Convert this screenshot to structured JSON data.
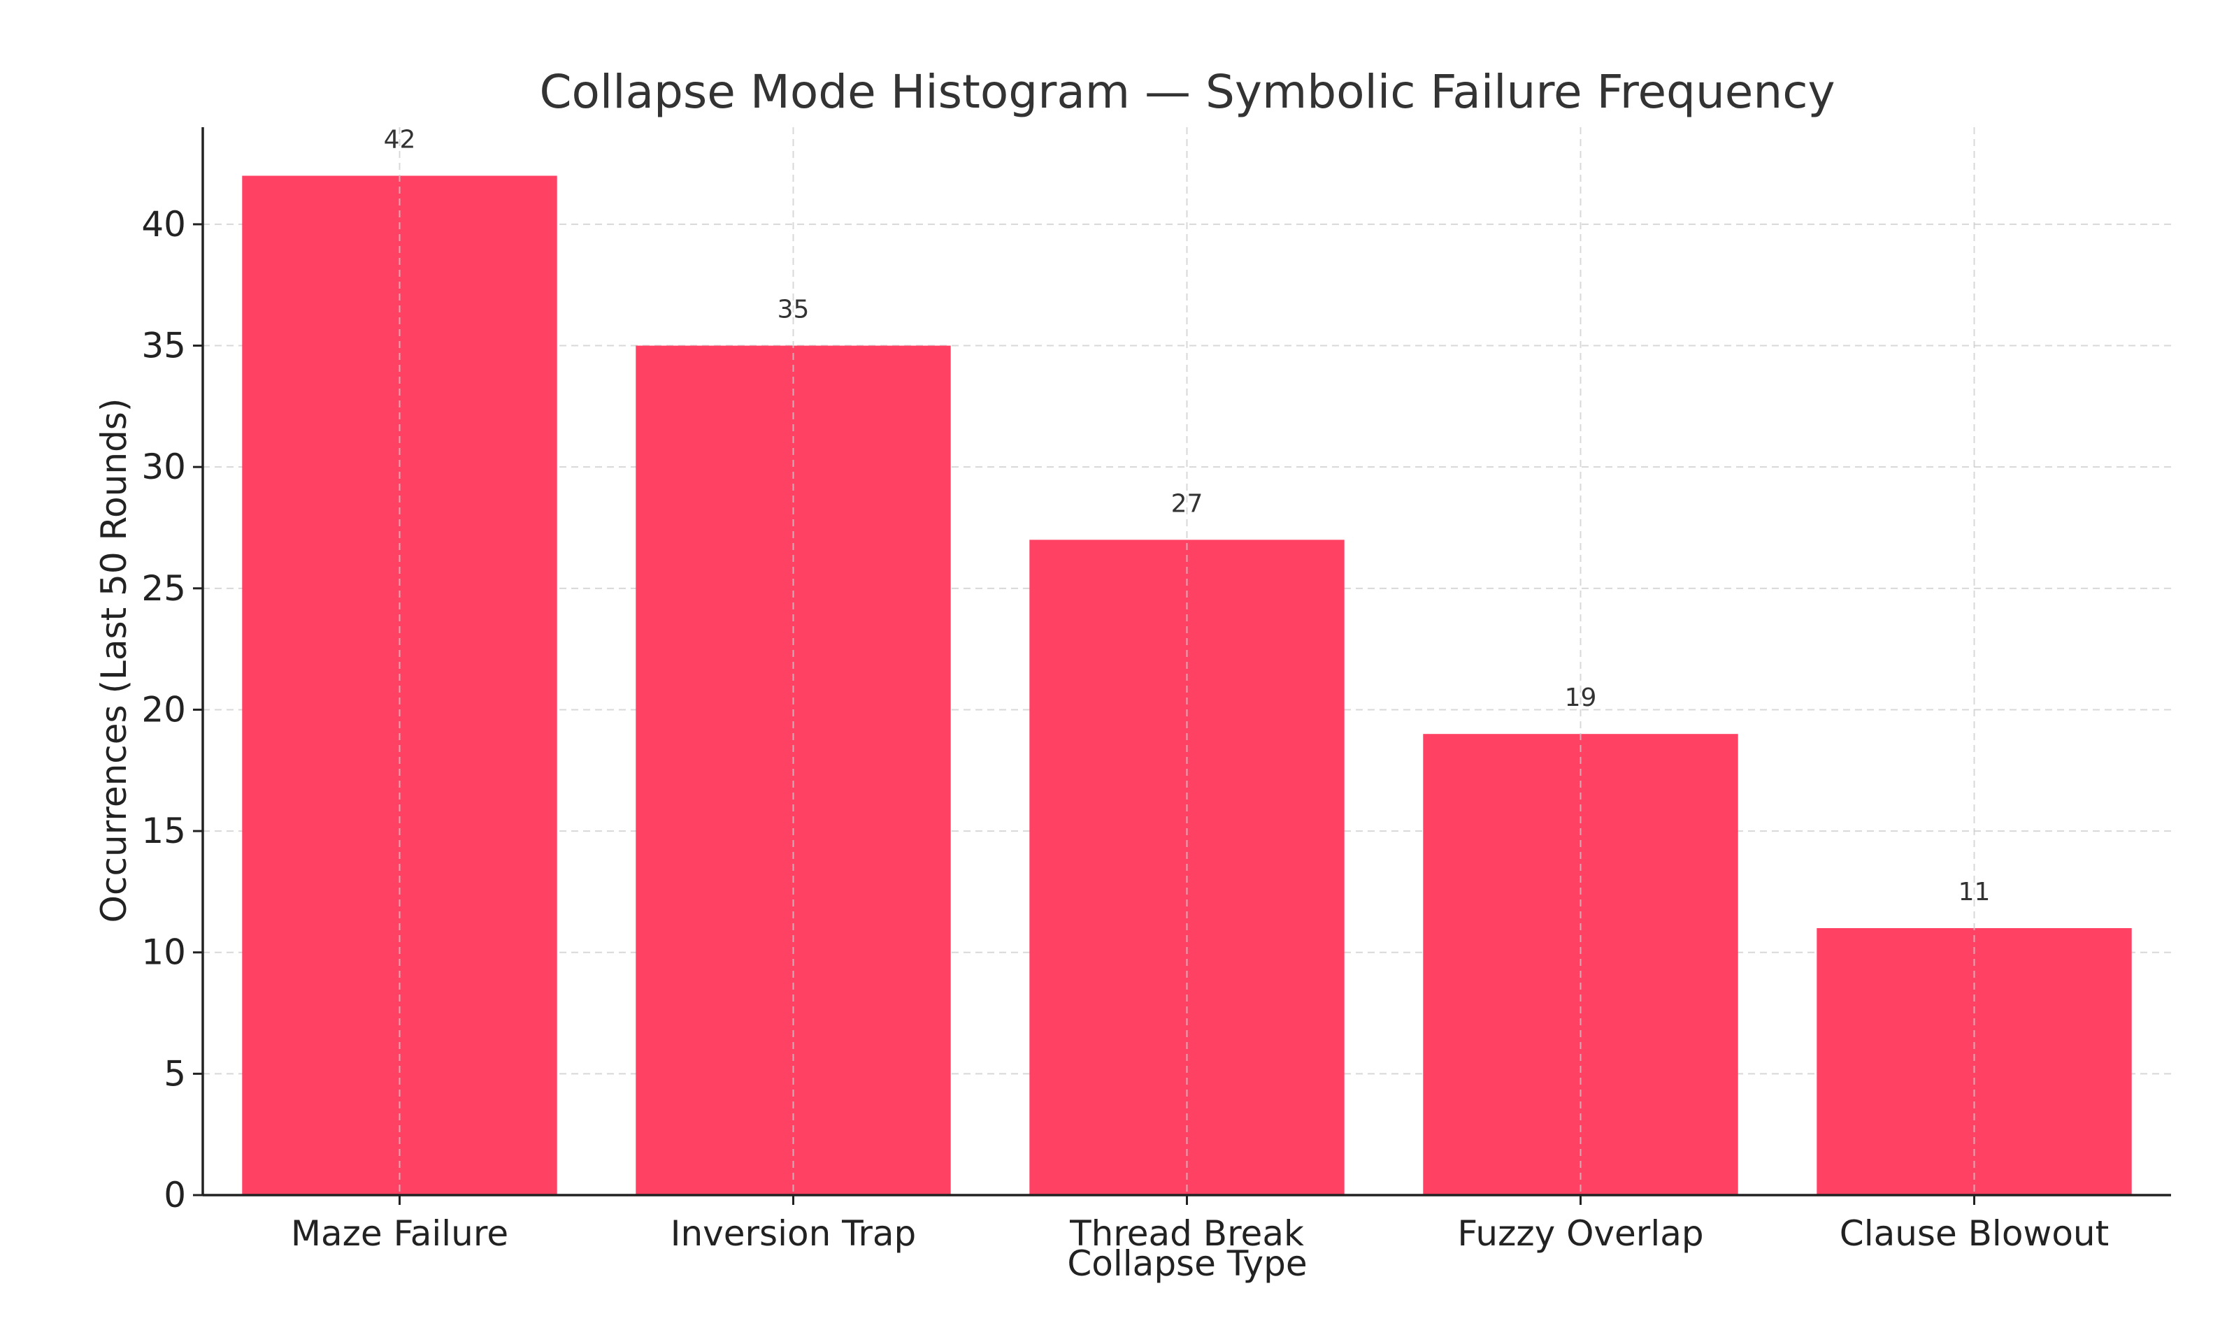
{
  "chart_data": {
    "type": "bar",
    "title": "Collapse Mode Histogram — Symbolic Failure Frequency",
    "xlabel": "Collapse Type",
    "ylabel": "Occurrences (Last 50 Rounds)",
    "categories": [
      "Maze Failure",
      "Inversion Trap",
      "Thread Break",
      "Fuzzy Overlap",
      "Clause Blowout"
    ],
    "values": [
      42,
      35,
      27,
      19,
      11
    ],
    "data_labels": [
      "42",
      "35",
      "27",
      "19",
      "11"
    ],
    "ylim": [
      0,
      44
    ],
    "yticks": [
      0,
      5,
      10,
      15,
      20,
      25,
      30,
      35,
      40
    ],
    "ytick_labels": [
      "0",
      "5",
      "10",
      "15",
      "20",
      "25",
      "30",
      "35",
      "40"
    ],
    "grid": true,
    "legend": "none",
    "bar_color": "#ff4264"
  }
}
